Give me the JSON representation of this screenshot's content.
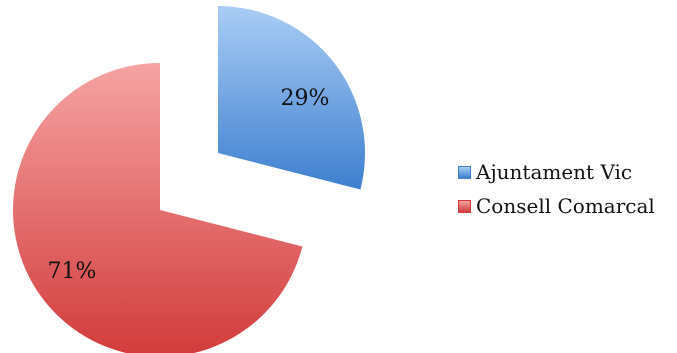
{
  "chart_data": {
    "type": "pie",
    "style": "exploded",
    "title": "",
    "slices": [
      {
        "name": "Ajuntament Vic",
        "value": 29,
        "label": "29%",
        "color_light": "#a9cdf5",
        "color_dark": "#3e7fd0"
      },
      {
        "name": "Consell Comarcal",
        "value": 71,
        "label": "71%",
        "color_light": "#f6a3a3",
        "color_dark": "#d23b3b"
      }
    ],
    "legend_position": "right"
  }
}
